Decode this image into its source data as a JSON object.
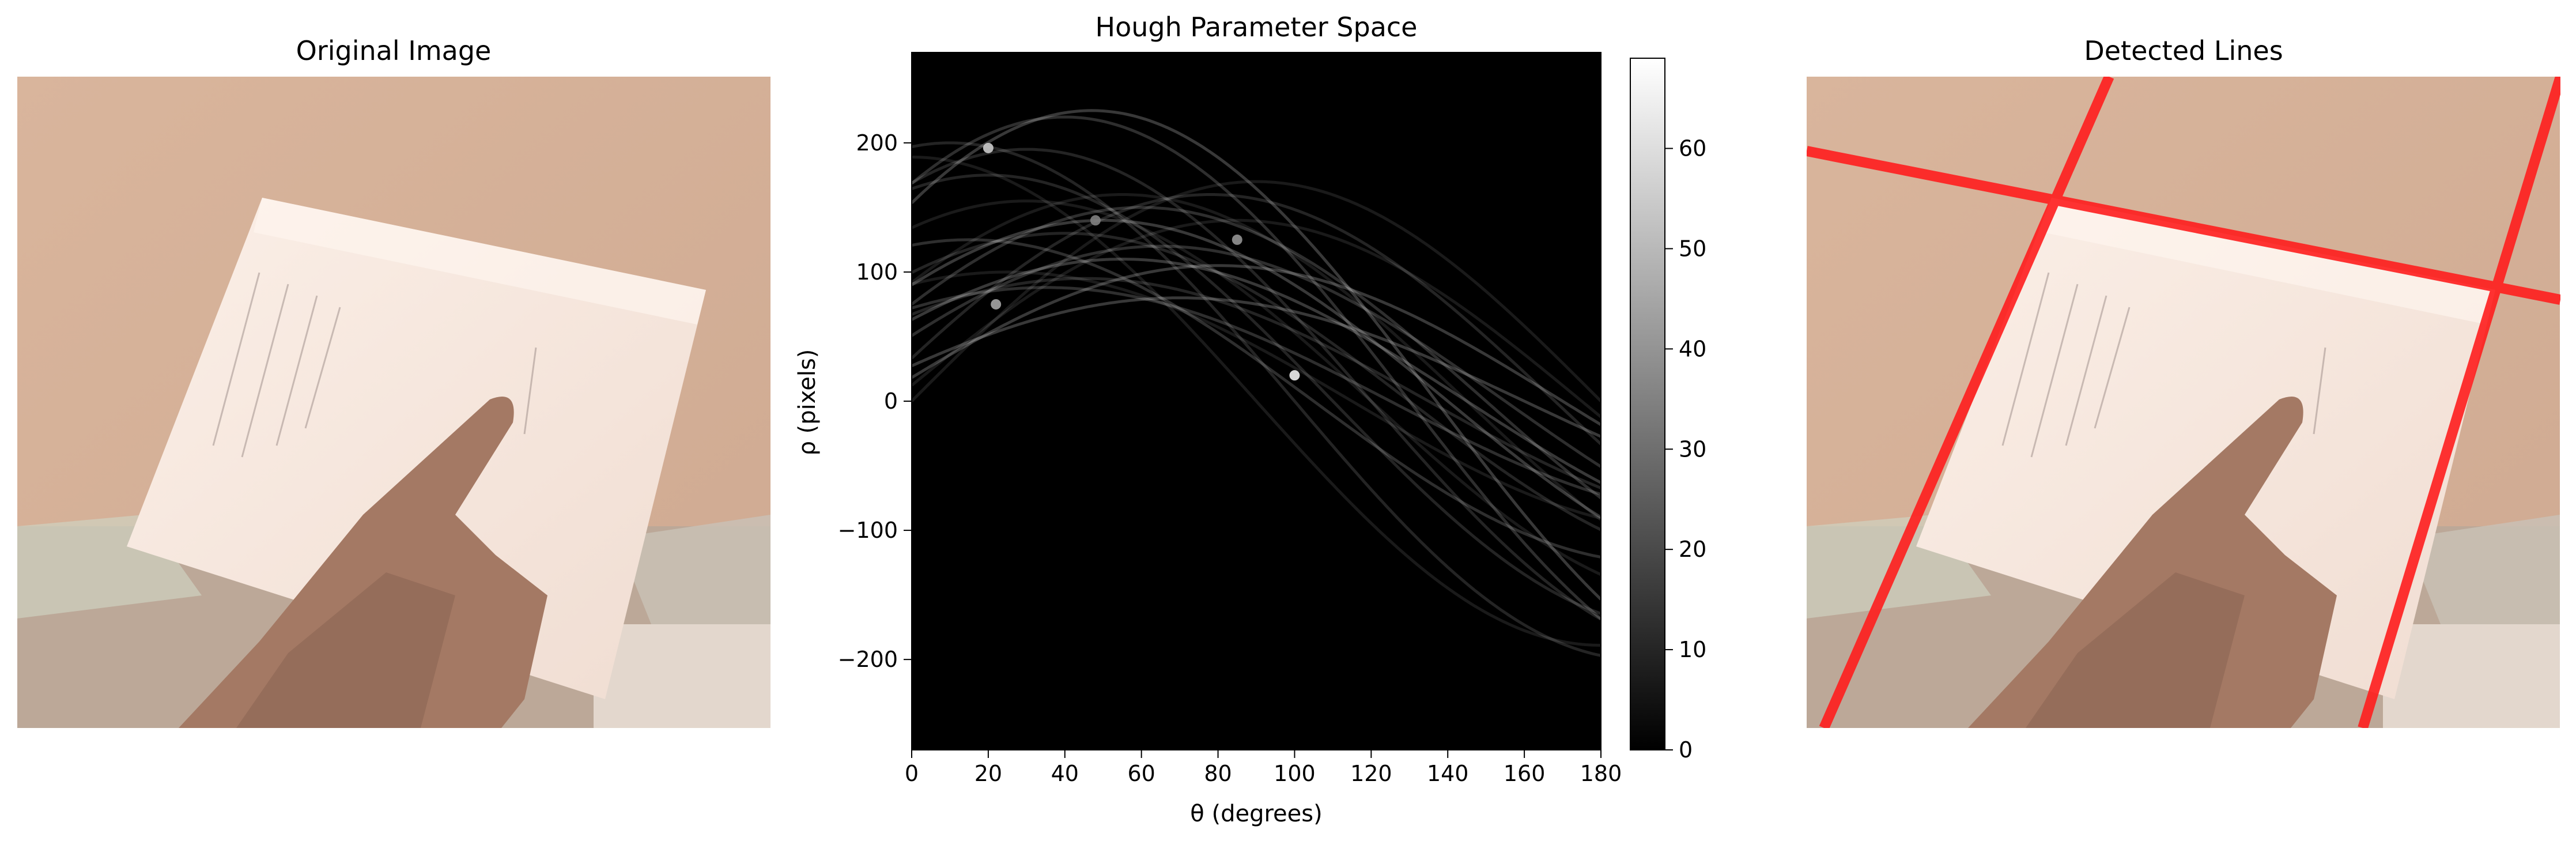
{
  "panels": {
    "original": {
      "title": "Original Image"
    },
    "hough": {
      "title": "Hough Parameter Space"
    },
    "detected": {
      "title": "Detected Lines"
    }
  },
  "colors": {
    "line_overlay": "#ff1e1e",
    "wall": "#d8b39a",
    "paper": "#f6e6dc",
    "skin": "#a57a62",
    "desk": "#c5b2a2"
  },
  "chart_data": {
    "type": "heatmap",
    "title": "Hough Parameter Space",
    "xlabel": "θ (degrees)",
    "ylabel": "ρ (pixels)",
    "xlim": [
      0,
      180
    ],
    "ylim": [
      -270,
      270
    ],
    "xticks": [
      0,
      20,
      40,
      60,
      80,
      100,
      120,
      140,
      160,
      180
    ],
    "yticks": [
      200,
      100,
      0,
      -100,
      -200
    ],
    "colormap": "gray",
    "colorbar": {
      "range": [
        0,
        69
      ],
      "ticks": [
        0,
        10,
        20,
        30,
        40,
        50,
        60
      ]
    },
    "curves": [
      {
        "amplitude": 189,
        "phase_deg": 0
      },
      {
        "amplitude": 200,
        "phase_deg": 10
      },
      {
        "amplitude": 220,
        "phase_deg": 40
      },
      {
        "amplitude": 225,
        "phase_deg": 47
      },
      {
        "amplitude": 170,
        "phase_deg": 90
      },
      {
        "amplitude": 160,
        "phase_deg": 78
      },
      {
        "amplitude": 150,
        "phase_deg": 60
      },
      {
        "amplitude": 140,
        "phase_deg": 50
      },
      {
        "amplitude": 155,
        "phase_deg": 30
      },
      {
        "amplitude": 130,
        "phase_deg": 40
      },
      {
        "amplitude": 120,
        "phase_deg": 65
      },
      {
        "amplitude": 110,
        "phase_deg": 55
      },
      {
        "amplitude": 100,
        "phase_deg": 25
      },
      {
        "amplitude": 95,
        "phase_deg": 45
      },
      {
        "amplitude": 88,
        "phase_deg": 35
      },
      {
        "amplitude": 80,
        "phase_deg": 70
      },
      {
        "amplitude": 140,
        "phase_deg": 85
      },
      {
        "amplitude": 175,
        "phase_deg": 20
      },
      {
        "amplitude": 125,
        "phase_deg": 15
      },
      {
        "amplitude": 105,
        "phase_deg": 80
      },
      {
        "amplitude": 160,
        "phase_deg": 55
      },
      {
        "amplitude": 195,
        "phase_deg": 30
      }
    ],
    "peaks": [
      {
        "theta": 20,
        "rho": 196,
        "value": 55
      },
      {
        "theta": 22,
        "rho": 75,
        "value": 45
      },
      {
        "theta": 100,
        "rho": 20,
        "value": 65
      },
      {
        "theta": 85,
        "rho": 125,
        "value": 40
      },
      {
        "theta": 48,
        "rho": 140,
        "value": 35
      }
    ]
  }
}
